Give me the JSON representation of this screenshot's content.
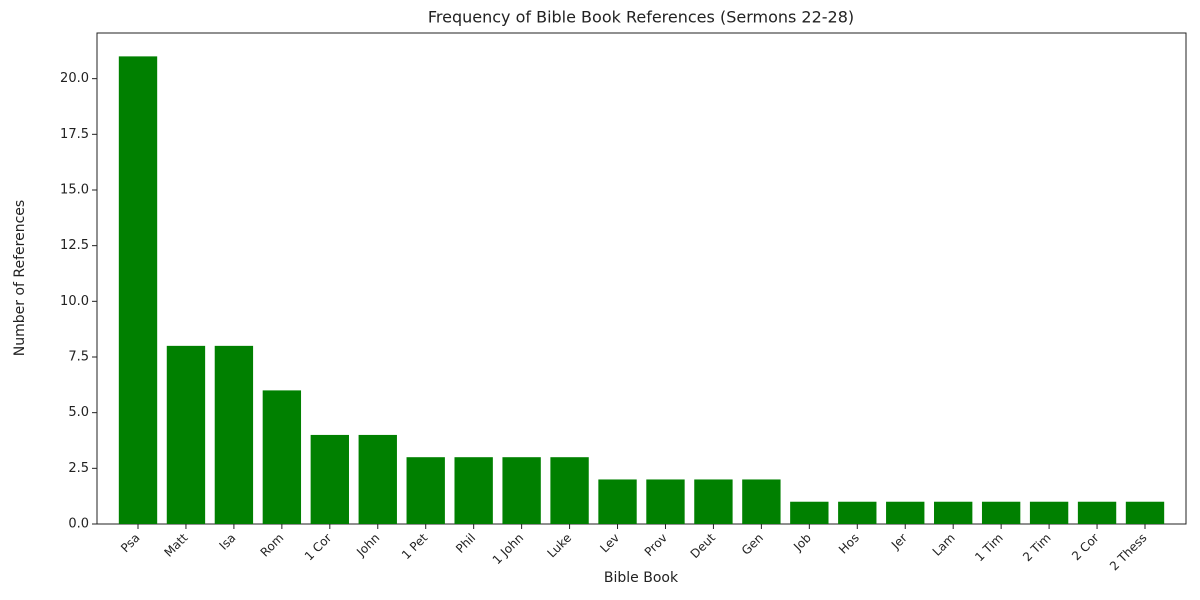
{
  "chart_data": {
    "type": "bar",
    "title": "Frequency of Bible Book References (Sermons 22-28)",
    "x_label": "Bible Book",
    "y_label": "Number of References",
    "categories": [
      "Psa",
      "Matt",
      "Isa",
      "Rom",
      "1 Cor",
      "John",
      "1 Pet",
      "Phil",
      "1 John",
      "Luke",
      "Lev",
      "Prov",
      "Deut",
      "Gen",
      "Job",
      "Hos",
      "Jer",
      "Lam",
      "1 Tim",
      "2 Tim",
      "2 Cor",
      "2 Thess"
    ],
    "values": [
      21,
      8,
      8,
      6,
      4,
      4,
      3,
      3,
      3,
      3,
      2,
      2,
      2,
      2,
      1,
      1,
      1,
      1,
      1,
      1,
      1,
      1
    ],
    "color": "#008000",
    "ylim": [
      0,
      22.05
    ],
    "yticks": [
      {
        "value": 0,
        "label": "0.0"
      },
      {
        "value": 2.5,
        "label": "2.5"
      },
      {
        "value": 5,
        "label": "5.0"
      },
      {
        "value": 7.5,
        "label": "7.5"
      },
      {
        "value": 10,
        "label": "10.0"
      },
      {
        "value": 12.5,
        "label": "12.5"
      },
      {
        "value": 15,
        "label": "15.0"
      },
      {
        "value": 17.5,
        "label": "17.5"
      },
      {
        "value": 20,
        "label": "20.0"
      }
    ],
    "grid": false
  }
}
